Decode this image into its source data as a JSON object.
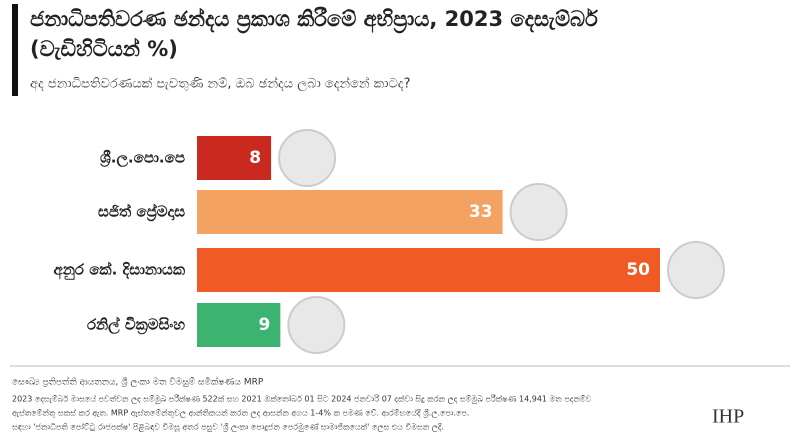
{
  "chart_data": {
    "type": "bar",
    "orientation": "horizontal",
    "title": "ජනාධිපතිවරණ ඡන්දය ප්‍රකාශ කිරීමේ අභිප්‍රාය, 2023 දෙසැම්බර්",
    "title_line2": "(වැඩිහිටියන් %)",
    "subtitle": "අද ජනාධිපතිවරණයක් පැවතුණි නම්, ඔබ ඡන්දය ලබා දෙන්නේ කාටද?",
    "categories": [
      "ශ්‍රී.ල.පො.පෙ",
      "සජිත් ප්‍රේමදාස",
      "අනුර කේ. දිසානායක",
      "රනිල් වික්‍රමසිංහ"
    ],
    "values": [
      8,
      33,
      50,
      9
    ],
    "colors": [
      "#c9291f",
      "#f4a261",
      "#f05a24",
      "#3cb371"
    ],
    "source": "සෞඛ්‍ය ප්‍රතිපත්ති ආයතනය, ශ්‍රී ලංකා මත විමසුම් සමීක්ෂණය MRP",
    "notes": [
      "2023 දෙසැම්බර් මාසයේ පවත්වන ලද සම්මුඛ පරීක්ෂණ 522ක් සහ 2021 ඔක්තෝබර් 01 සිට 2024 ජනවාරි 07 දක්වා සිදු කරන ලද සම්මුඛ පරීක්ෂණ 14,941 මත පදනම්ව",
      "ඇස්තමේන්තු සකස් කර ඇත. MRP ඇස්තමේන්තුවල ආන්තිකයන් කරන ලද ආසන්න අගය 1-4% ක පමණ වේ. ආරම්භයේදී ශ්‍රී.ල.පො.පෙ.",
      "සඳහා 'ජනාධිපති පෝට්ටු රාජපක්ෂ' පිළිබඳව විමසූ අතර පසුව 'ශ්‍රී ලංකා පොදුජන පෙරමුණේ සාමාජිකයෙක්' ලෙස එය විමසන ලදී."
    ],
    "logo": "IHP"
  }
}
